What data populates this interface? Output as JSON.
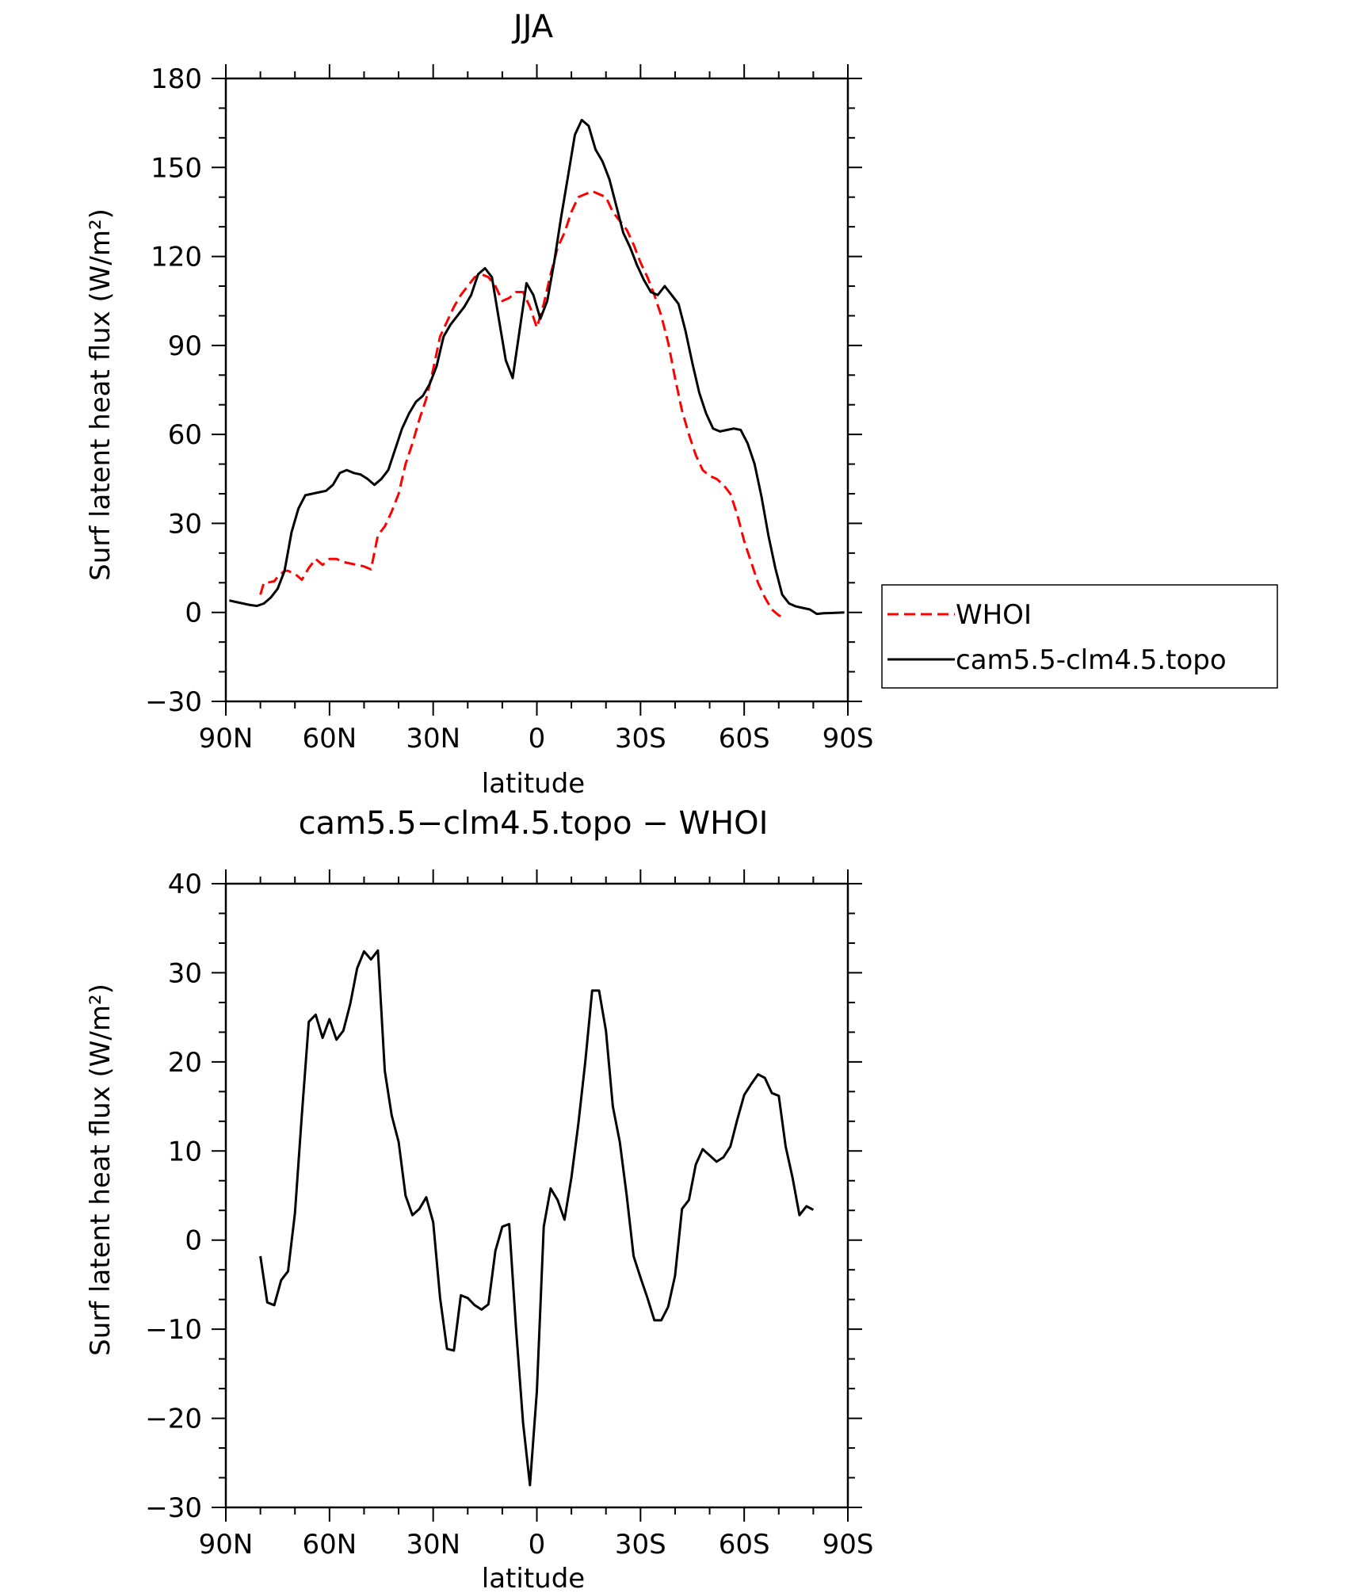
{
  "chart_data": [
    {
      "type": "line",
      "title": "JJA",
      "xlabel": "latitude",
      "ylabel": "Surf latent heat flux (W/m²)",
      "xlim": [
        -90,
        90
      ],
      "ylim": [
        -30,
        180
      ],
      "x_direction": "north-to-south",
      "xticks": [
        {
          "value": -90,
          "label": "90N"
        },
        {
          "value": -60,
          "label": "60N"
        },
        {
          "value": -30,
          "label": "30N"
        },
        {
          "value": 0,
          "label": "0"
        },
        {
          "value": 30,
          "label": "30S"
        },
        {
          "value": 60,
          "label": "60S"
        },
        {
          "value": 90,
          "label": "90S"
        }
      ],
      "yticks": [
        -30,
        0,
        30,
        60,
        90,
        120,
        150,
        180
      ],
      "grid": false,
      "legend_position": "right",
      "series": [
        {
          "name": "WHOI",
          "color": "#ff0000",
          "dash": true,
          "points": [
            [
              -80,
              6
            ],
            [
              -79,
              10
            ],
            [
              -78,
              10
            ],
            [
              -76,
              10.5
            ],
            [
              -75,
              12
            ],
            [
              -73,
              14
            ],
            [
              -72,
              14
            ],
            [
              -70,
              13
            ],
            [
              -68,
              11
            ],
            [
              -66,
              15
            ],
            [
              -64,
              18
            ],
            [
              -62,
              16
            ],
            [
              -60,
              18
            ],
            [
              -58,
              18
            ],
            [
              -56,
              17
            ],
            [
              -54,
              16.5
            ],
            [
              -52,
              16
            ],
            [
              -50,
              15.5
            ],
            [
              -48,
              14.5
            ],
            [
              -46,
              26
            ],
            [
              -44,
              29
            ],
            [
              -42,
              34
            ],
            [
              -40,
              40
            ],
            [
              -38,
              50
            ],
            [
              -36,
              57
            ],
            [
              -34,
              65
            ],
            [
              -32,
              72
            ],
            [
              -30,
              82
            ],
            [
              -28,
              93
            ],
            [
              -26,
              98
            ],
            [
              -24,
              103
            ],
            [
              -22,
              107
            ],
            [
              -20,
              110
            ],
            [
              -18,
              113
            ],
            [
              -16,
              114
            ],
            [
              -14,
              113
            ],
            [
              -12,
              110
            ],
            [
              -10,
              105
            ],
            [
              -8,
              106
            ],
            [
              -6,
              108
            ],
            [
              -4,
              108
            ],
            [
              -2,
              103
            ],
            [
              0,
              96
            ],
            [
              2,
              104
            ],
            [
              4,
              114
            ],
            [
              6,
              123
            ],
            [
              8,
              128
            ],
            [
              10,
              135
            ],
            [
              12,
              140
            ],
            [
              14,
              141
            ],
            [
              16,
              142
            ],
            [
              18,
              141
            ],
            [
              20,
              140
            ],
            [
              22,
              135
            ],
            [
              24,
              132
            ],
            [
              26,
              129
            ],
            [
              28,
              124
            ],
            [
              30,
              118
            ],
            [
              32,
              113
            ],
            [
              34,
              107
            ],
            [
              36,
              100
            ],
            [
              38,
              91
            ],
            [
              40,
              79
            ],
            [
              42,
              68
            ],
            [
              44,
              60
            ],
            [
              46,
              53
            ],
            [
              48,
              48
            ],
            [
              50,
              46
            ],
            [
              52,
              45
            ],
            [
              54,
              43
            ],
            [
              56,
              40
            ],
            [
              58,
              33
            ],
            [
              60,
              24
            ],
            [
              62,
              17
            ],
            [
              64,
              10
            ],
            [
              66,
              5
            ],
            [
              68,
              1
            ],
            [
              70,
              -1
            ],
            [
              72,
              -2
            ]
          ]
        },
        {
          "name": "cam5.5-clm4.5.topo",
          "color": "#000000",
          "dash": false,
          "points": [
            [
              -89,
              4
            ],
            [
              -87,
              3.5
            ],
            [
              -85,
              3
            ],
            [
              -83,
              2.5
            ],
            [
              -81,
              2.2
            ],
            [
              -79,
              3
            ],
            [
              -77,
              5
            ],
            [
              -75,
              8
            ],
            [
              -73,
              14
            ],
            [
              -71,
              27
            ],
            [
              -69,
              35
            ],
            [
              -67,
              39.5
            ],
            [
              -65,
              40
            ],
            [
              -63,
              40.5
            ],
            [
              -61,
              41
            ],
            [
              -59,
              43
            ],
            [
              -57,
              47
            ],
            [
              -55,
              48
            ],
            [
              -53,
              47
            ],
            [
              -51,
              46.5
            ],
            [
              -49,
              45
            ],
            [
              -47,
              43
            ],
            [
              -45,
              45
            ],
            [
              -43,
              48
            ],
            [
              -41,
              55
            ],
            [
              -39,
              62
            ],
            [
              -37,
              67
            ],
            [
              -35,
              71
            ],
            [
              -33,
              73
            ],
            [
              -31,
              77
            ],
            [
              -29,
              83
            ],
            [
              -27,
              93
            ],
            [
              -25,
              97
            ],
            [
              -23,
              100
            ],
            [
              -21,
              103
            ],
            [
              -19,
              107
            ],
            [
              -17,
              114
            ],
            [
              -15,
              116
            ],
            [
              -13,
              113
            ],
            [
              -11,
              99
            ],
            [
              -9,
              85
            ],
            [
              -7,
              79
            ],
            [
              -5,
              95
            ],
            [
              -3,
              111
            ],
            [
              -1,
              107
            ],
            [
              1,
              99
            ],
            [
              3,
              105
            ],
            [
              5,
              118
            ],
            [
              7,
              133
            ],
            [
              9,
              147
            ],
            [
              11,
              161
            ],
            [
              13,
              166
            ],
            [
              15,
              164
            ],
            [
              17,
              156
            ],
            [
              19,
              152
            ],
            [
              21,
              146
            ],
            [
              23,
              137
            ],
            [
              25,
              128
            ],
            [
              27,
              123
            ],
            [
              29,
              117
            ],
            [
              31,
              112
            ],
            [
              33,
              108
            ],
            [
              35,
              107
            ],
            [
              37,
              110
            ],
            [
              39,
              107
            ],
            [
              41,
              104
            ],
            [
              43,
              95
            ],
            [
              45,
              84
            ],
            [
              47,
              74
            ],
            [
              49,
              67
            ],
            [
              51,
              62
            ],
            [
              53,
              61
            ],
            [
              55,
              61.5
            ],
            [
              57,
              62
            ],
            [
              59,
              61.5
            ],
            [
              61,
              57
            ],
            [
              63,
              50
            ],
            [
              65,
              39
            ],
            [
              67,
              26
            ],
            [
              69,
              15
            ],
            [
              71,
              6
            ],
            [
              73,
              3
            ],
            [
              75,
              2
            ],
            [
              77,
              1.5
            ],
            [
              79,
              1
            ],
            [
              81,
              -0.5
            ],
            [
              83,
              -0.3
            ],
            [
              85,
              -0.2
            ],
            [
              87,
              -0.1
            ],
            [
              89,
              0
            ]
          ]
        }
      ]
    },
    {
      "type": "line",
      "title": "cam5.5−clm4.5.topo − WHOI",
      "xlabel": "latitude",
      "ylabel": "Surf latent heat flux (W/m²)",
      "xlim": [
        -90,
        90
      ],
      "ylim": [
        -30,
        40
      ],
      "x_direction": "north-to-south",
      "xticks": [
        {
          "value": -90,
          "label": "90N"
        },
        {
          "value": -60,
          "label": "60N"
        },
        {
          "value": -30,
          "label": "30N"
        },
        {
          "value": 0,
          "label": "0"
        },
        {
          "value": 30,
          "label": "30S"
        },
        {
          "value": 60,
          "label": "60S"
        },
        {
          "value": 90,
          "label": "90S"
        }
      ],
      "yticks": [
        -30,
        -20,
        -10,
        0,
        10,
        20,
        30,
        40
      ],
      "grid": false,
      "series": [
        {
          "color": "#000000",
          "dash": false,
          "points": [
            [
              -80,
              -1.8
            ],
            [
              -78,
              -7
            ],
            [
              -76,
              -7.3
            ],
            [
              -74,
              -4.5
            ],
            [
              -72,
              -3.5
            ],
            [
              -70,
              3
            ],
            [
              -68,
              14
            ],
            [
              -66,
              24.5
            ],
            [
              -64,
              25.3
            ],
            [
              -62,
              22.7
            ],
            [
              -60,
              24.8
            ],
            [
              -58,
              22.5
            ],
            [
              -56,
              23.5
            ],
            [
              -54,
              26.5
            ],
            [
              -52,
              30.5
            ],
            [
              -50,
              32.4
            ],
            [
              -48,
              31.5
            ],
            [
              -46,
              32.5
            ],
            [
              -44,
              19
            ],
            [
              -42,
              14
            ],
            [
              -40,
              11
            ],
            [
              -38,
              5
            ],
            [
              -36,
              2.8
            ],
            [
              -34,
              3.5
            ],
            [
              -32,
              4.8
            ],
            [
              -30,
              2
            ],
            [
              -28,
              -6.5
            ],
            [
              -26,
              -12.2
            ],
            [
              -24,
              -12.4
            ],
            [
              -22,
              -6.2
            ],
            [
              -20,
              -6.5
            ],
            [
              -18,
              -7.3
            ],
            [
              -16,
              -7.8
            ],
            [
              -14,
              -7.2
            ],
            [
              -12,
              -1.2
            ],
            [
              -10,
              1.5
            ],
            [
              -8,
              1.8
            ],
            [
              -6,
              -10
            ],
            [
              -4,
              -20.5
            ],
            [
              -2,
              -27.5
            ],
            [
              0,
              -17
            ],
            [
              2,
              1.5
            ],
            [
              4,
              5.8
            ],
            [
              6,
              4.5
            ],
            [
              8,
              2.3
            ],
            [
              10,
              7
            ],
            [
              12,
              13
            ],
            [
              14,
              20
            ],
            [
              16,
              28
            ],
            [
              18,
              28
            ],
            [
              20,
              23.5
            ],
            [
              22,
              15
            ],
            [
              24,
              11
            ],
            [
              26,
              5
            ],
            [
              28,
              -1.8
            ],
            [
              30,
              -4.2
            ],
            [
              32,
              -6.5
            ],
            [
              34,
              -9
            ],
            [
              36,
              -9
            ],
            [
              38,
              -7.5
            ],
            [
              40,
              -4
            ],
            [
              42,
              3.5
            ],
            [
              44,
              4.5
            ],
            [
              46,
              8.5
            ],
            [
              48,
              10.2
            ],
            [
              50,
              9.5
            ],
            [
              52,
              8.8
            ],
            [
              54,
              9.3
            ],
            [
              56,
              10.5
            ],
            [
              58,
              13.5
            ],
            [
              60,
              16.3
            ],
            [
              62,
              17.5
            ],
            [
              64,
              18.6
            ],
            [
              66,
              18.2
            ],
            [
              68,
              16.5
            ],
            [
              70,
              16.2
            ],
            [
              72,
              10.5
            ],
            [
              74,
              7
            ],
            [
              76,
              2.8
            ],
            [
              78,
              3.8
            ],
            [
              80,
              3.4
            ]
          ]
        }
      ]
    }
  ]
}
